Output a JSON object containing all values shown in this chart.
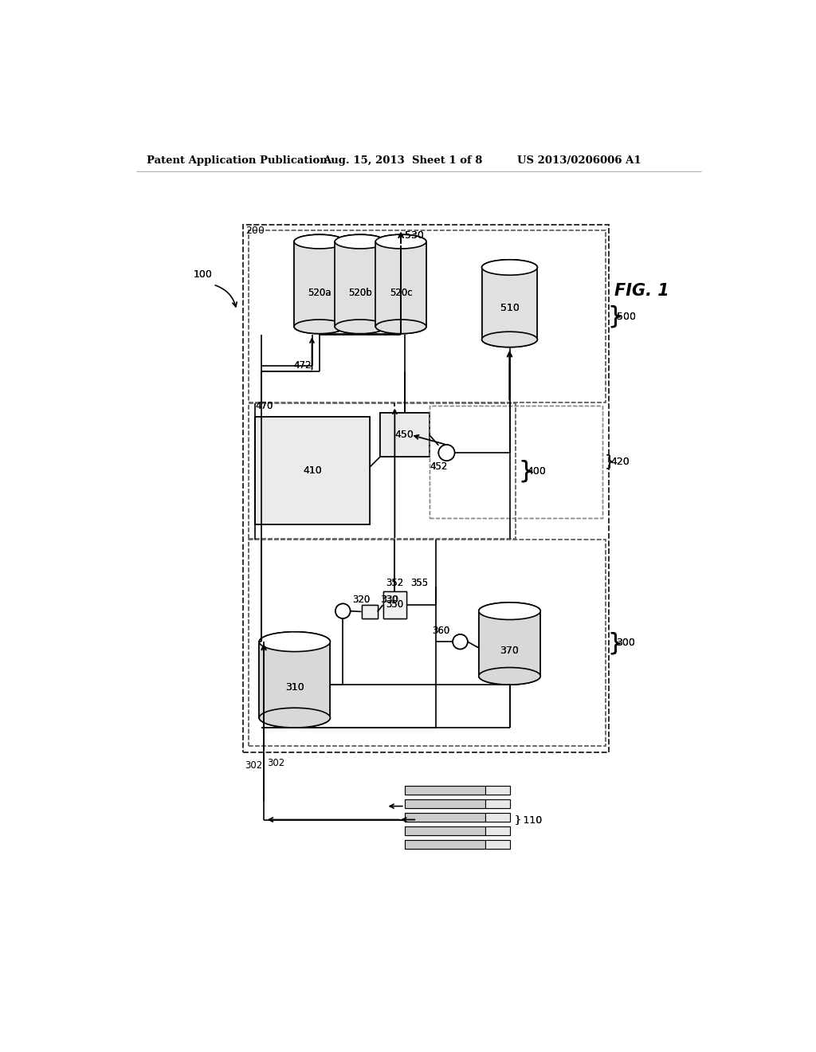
{
  "title_left": "Patent Application Publication",
  "title_mid": "Aug. 15, 2013  Sheet 1 of 8",
  "title_right": "US 2013/0206006 A1",
  "bg_color": "#ffffff"
}
